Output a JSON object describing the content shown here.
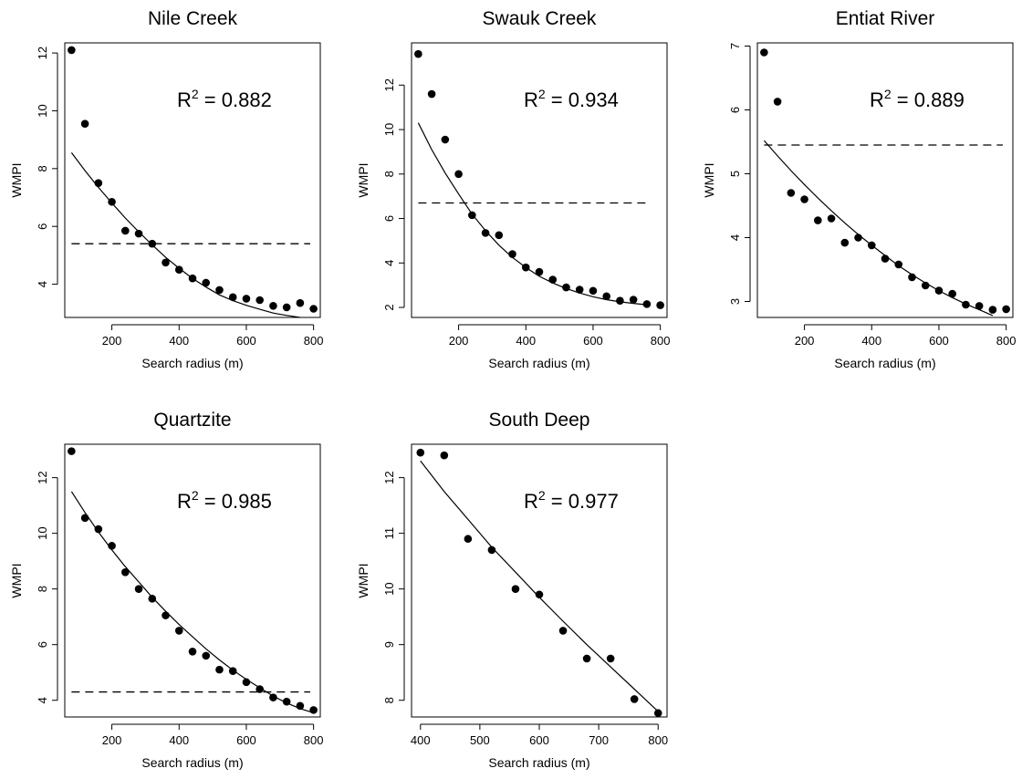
{
  "chart_data": [
    {
      "type": "scatter",
      "title": "Nile Creek",
      "xlabel": "Search radius (m)",
      "ylabel": "WMPI",
      "xlim": [
        60,
        820
      ],
      "ylim": [
        2.85,
        12.35
      ],
      "xticks": [
        200,
        400,
        600,
        800
      ],
      "yticks": [
        4,
        6,
        8,
        10,
        12
      ],
      "x": [
        80,
        120,
        160,
        200,
        240,
        280,
        320,
        360,
        400,
        440,
        480,
        520,
        560,
        600,
        640,
        680,
        720,
        760,
        800
      ],
      "y": [
        12.1,
        9.55,
        7.5,
        6.85,
        5.85,
        5.75,
        5.4,
        4.75,
        4.5,
        4.2,
        4.05,
        3.8,
        3.55,
        3.5,
        3.45,
        3.25,
        3.2,
        3.35,
        3.15
      ],
      "fit_x": [
        80,
        120,
        160,
        200,
        240,
        280,
        320,
        360,
        400,
        440,
        480,
        520,
        560,
        600,
        640,
        680,
        720,
        760
      ],
      "fit_y": [
        8.55,
        7.93,
        7.35,
        6.81,
        6.29,
        5.81,
        5.36,
        4.93,
        4.55,
        4.2,
        3.9,
        3.63,
        3.43,
        3.27,
        3.13,
        3.0,
        2.92,
        2.85
      ],
      "hline": 5.4,
      "hline_x": [
        80,
        790
      ],
      "r2_label": "R",
      "r2_sup": "2",
      "r2_value": " = 0.882"
    },
    {
      "type": "scatter",
      "title": "Swauk Creek",
      "xlabel": "Search radius (m)",
      "ylabel": "WMPI",
      "xlim": [
        60,
        820
      ],
      "ylim": [
        1.55,
        13.9
      ],
      "xticks": [
        200,
        400,
        600,
        800
      ],
      "yticks": [
        2,
        4,
        6,
        8,
        10,
        12
      ],
      "x": [
        80,
        120,
        160,
        200,
        240,
        280,
        320,
        360,
        400,
        440,
        480,
        520,
        560,
        600,
        640,
        680,
        720,
        760,
        800
      ],
      "y": [
        13.4,
        11.6,
        9.55,
        8.0,
        6.15,
        5.35,
        5.25,
        4.4,
        3.8,
        3.6,
        3.25,
        2.9,
        2.8,
        2.75,
        2.5,
        2.3,
        2.35,
        2.15,
        2.1
      ],
      "fit_x": [
        80,
        120,
        160,
        200,
        240,
        280,
        320,
        360,
        400,
        440,
        480,
        520,
        560,
        600,
        640,
        680,
        720,
        760
      ],
      "fit_y": [
        10.3,
        9.1,
        8.05,
        7.1,
        6.2,
        5.45,
        4.8,
        4.25,
        3.8,
        3.4,
        3.1,
        2.85,
        2.65,
        2.48,
        2.35,
        2.25,
        2.18,
        2.12
      ],
      "hline": 6.7,
      "hline_x": [
        80,
        760
      ],
      "r2_label": "R",
      "r2_sup": "2",
      "r2_value": " = 0.934"
    },
    {
      "type": "scatter",
      "title": "Entiat River",
      "xlabel": "Search radius (m)",
      "ylabel": "WMPI",
      "xlim": [
        60,
        820
      ],
      "ylim": [
        2.75,
        7.05
      ],
      "xticks": [
        200,
        400,
        600,
        800
      ],
      "yticks": [
        3,
        4,
        5,
        6,
        7
      ],
      "x": [
        80,
        120,
        160,
        200,
        240,
        280,
        320,
        360,
        400,
        440,
        480,
        520,
        560,
        600,
        640,
        680,
        720,
        760,
        800
      ],
      "y": [
        6.9,
        6.13,
        4.7,
        4.6,
        4.27,
        4.3,
        3.92,
        4.0,
        3.88,
        3.67,
        3.58,
        3.38,
        3.25,
        3.17,
        3.12,
        2.95,
        2.93,
        2.87,
        2.88
      ],
      "fit_x": [
        80,
        120,
        160,
        200,
        240,
        280,
        320,
        360,
        400,
        440,
        480,
        520,
        560,
        600,
        640,
        680,
        720,
        760
      ],
      "fit_y": [
        5.52,
        5.28,
        5.05,
        4.83,
        4.62,
        4.42,
        4.23,
        4.05,
        3.88,
        3.72,
        3.56,
        3.42,
        3.29,
        3.17,
        3.06,
        2.96,
        2.87,
        2.78
      ],
      "hline": 5.45,
      "hline_x": [
        80,
        790
      ],
      "r2_label": "R",
      "r2_sup": "2",
      "r2_value": " = 0.889"
    },
    {
      "type": "scatter",
      "title": "Quartzite",
      "xlabel": "Search radius (m)",
      "ylabel": "WMPI",
      "xlim": [
        60,
        820
      ],
      "ylim": [
        3.4,
        13.2
      ],
      "xticks": [
        200,
        400,
        600,
        800
      ],
      "yticks": [
        4,
        6,
        8,
        10,
        12
      ],
      "x": [
        80,
        120,
        160,
        200,
        240,
        280,
        320,
        360,
        400,
        440,
        480,
        520,
        560,
        600,
        640,
        680,
        720,
        760,
        800
      ],
      "y": [
        12.95,
        10.55,
        10.15,
        9.55,
        8.6,
        8.0,
        7.65,
        7.05,
        6.5,
        5.75,
        5.6,
        5.1,
        5.05,
        4.65,
        4.4,
        4.1,
        3.95,
        3.8,
        3.65
      ],
      "fit_x": [
        80,
        120,
        160,
        200,
        240,
        280,
        320,
        360,
        400,
        440,
        480,
        520,
        560,
        600,
        640,
        680,
        720,
        760,
        800
      ],
      "fit_y": [
        11.5,
        10.75,
        10.05,
        9.4,
        8.8,
        8.25,
        7.7,
        7.2,
        6.72,
        6.28,
        5.85,
        5.45,
        5.08,
        4.75,
        4.45,
        4.15,
        3.9,
        3.7,
        3.55
      ],
      "hline": 4.3,
      "hline_x": [
        80,
        790
      ],
      "r2_label": "R",
      "r2_sup": "2",
      "r2_value": " = 0.985"
    },
    {
      "type": "scatter",
      "title": "South Deep",
      "xlabel": "Search radius (m)",
      "ylabel": "WMPI",
      "xlim": [
        385,
        815
      ],
      "ylim": [
        7.7,
        12.6
      ],
      "xticks": [
        400,
        500,
        600,
        700,
        800
      ],
      "yticks": [
        8,
        9,
        10,
        11,
        12
      ],
      "x": [
        400,
        440,
        480,
        520,
        560,
        600,
        640,
        680,
        720,
        760,
        800
      ],
      "y": [
        12.45,
        12.4,
        10.9,
        10.7,
        10.0,
        9.9,
        9.25,
        8.75,
        8.75,
        8.02,
        7.77
      ],
      "fit_x": [
        400,
        440,
        480,
        520,
        560,
        600,
        640,
        680,
        720,
        760,
        800
      ],
      "fit_y": [
        12.3,
        11.75,
        11.25,
        10.75,
        10.3,
        9.85,
        9.42,
        9.0,
        8.6,
        8.2,
        7.8
      ],
      "r2_label": "R",
      "r2_sup": "2",
      "r2_value": " = 0.977"
    }
  ]
}
